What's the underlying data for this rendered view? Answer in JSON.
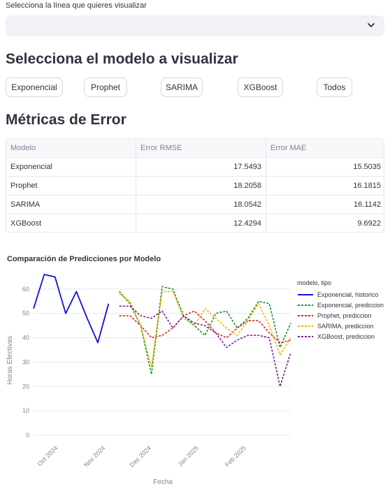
{
  "line_select": {
    "label": "Selecciona la línea que quieres visualizar",
    "value": ""
  },
  "model_section": {
    "title": "Selecciona el modelo a visualizar",
    "buttons": [
      "Exponencial",
      "Prophet",
      "SARIMA",
      "XGBoost",
      "Todos"
    ]
  },
  "metrics": {
    "title": "Métricas de Error",
    "columns": [
      "Modelo",
      "Error RMSE",
      "Error MAE"
    ],
    "rows": [
      [
        "Exponencial",
        "17.5493",
        "15.5035"
      ],
      [
        "Prophet",
        "18.2058",
        "16.1815"
      ],
      [
        "SARIMA",
        "18.0542",
        "16.1142"
      ],
      [
        "XGBoost",
        "12.4294",
        "9.6922"
      ]
    ]
  },
  "chart_data": {
    "type": "line",
    "title": "Comparación de Predicciones por Modelo",
    "xlabel": "Fecha",
    "ylabel": "Horas Efectivas",
    "x_ticks": [
      "Oct 2024",
      "Nov 2024",
      "Dec 2024",
      "Jan 2025",
      "Feb 2025"
    ],
    "y_ticks": [
      0,
      10,
      20,
      30,
      40,
      50,
      60
    ],
    "ylim": [
      -2,
      68
    ],
    "legend_title": "modelo, tipo",
    "legend_position": "right",
    "grid": true,
    "series": [
      {
        "name": "Exponencial, historico",
        "color": "#1010d8",
        "dash": false,
        "x": [
          "2024-09-15",
          "2024-09-22",
          "2024-09-29",
          "2024-10-06",
          "2024-10-13",
          "2024-10-20",
          "2024-10-27",
          "2024-11-03"
        ],
        "y": [
          52,
          66,
          65,
          50,
          59,
          48,
          38,
          54
        ]
      },
      {
        "name": "Exponencial, prediccion",
        "color": "#14901e",
        "dash": true,
        "x": [
          "2024-11-10",
          "2024-11-17",
          "2024-11-24",
          "2024-12-01",
          "2024-12-08",
          "2024-12-15",
          "2024-12-22",
          "2024-12-29",
          "2025-01-05",
          "2025-01-12",
          "2025-01-19",
          "2025-01-26",
          "2025-02-02",
          "2025-02-09",
          "2025-02-16",
          "2025-02-23",
          "2025-03-02"
        ],
        "y": [
          59,
          54,
          45,
          25,
          61,
          60,
          49,
          45,
          41,
          50,
          51,
          44,
          48,
          55,
          54,
          36,
          46
        ]
      },
      {
        "name": "Prophet, prediccion",
        "color": "#e21e1e",
        "dash": true,
        "x": [
          "2024-11-10",
          "2024-11-17",
          "2024-11-24",
          "2024-12-01",
          "2024-12-08",
          "2024-12-15",
          "2024-12-22",
          "2024-12-29",
          "2025-01-05",
          "2025-01-12",
          "2025-01-19",
          "2025-01-26",
          "2025-02-02",
          "2025-02-09",
          "2025-02-16",
          "2025-02-23",
          "2025-03-02"
        ],
        "y": [
          49,
          49,
          45,
          40,
          41,
          44,
          49,
          51,
          47,
          42,
          40,
          44,
          47,
          47,
          42,
          38,
          39
        ]
      },
      {
        "name": "SARIMA, prediccion",
        "color": "#f4b400",
        "dash": true,
        "x": [
          "2024-11-10",
          "2024-11-17",
          "2024-11-24",
          "2024-12-01",
          "2024-12-08",
          "2024-12-15",
          "2024-12-22",
          "2024-12-29",
          "2025-01-05",
          "2025-01-12",
          "2025-01-19",
          "2025-01-26",
          "2025-02-02",
          "2025-02-09",
          "2025-02-16",
          "2025-02-23",
          "2025-03-02"
        ],
        "y": [
          58,
          55,
          45,
          28,
          59,
          59,
          48,
          45,
          52,
          48,
          44,
          41,
          47,
          54,
          45,
          33,
          40
        ]
      },
      {
        "name": "XGBoost, prediccion",
        "color": "#7a1a9a",
        "dash": true,
        "x": [
          "2024-11-10",
          "2024-11-17",
          "2024-11-24",
          "2024-12-01",
          "2024-12-08",
          "2024-12-15",
          "2024-12-22",
          "2024-12-29",
          "2025-01-05",
          "2025-01-12",
          "2025-01-19",
          "2025-01-26",
          "2025-02-02",
          "2025-02-09",
          "2025-02-16",
          "2025-02-23",
          "2025-03-02"
        ],
        "y": [
          53,
          53,
          49,
          48,
          51,
          44,
          49,
          46,
          45,
          42,
          36,
          39,
          41,
          41,
          40,
          20,
          34
        ]
      }
    ]
  },
  "colors": {
    "accent": "#1010d8",
    "grid": "#e6e7eb",
    "text": "#31333f",
    "muted": "#808495"
  },
  "icons": {
    "dropdown": "chevron-down-icon"
  }
}
